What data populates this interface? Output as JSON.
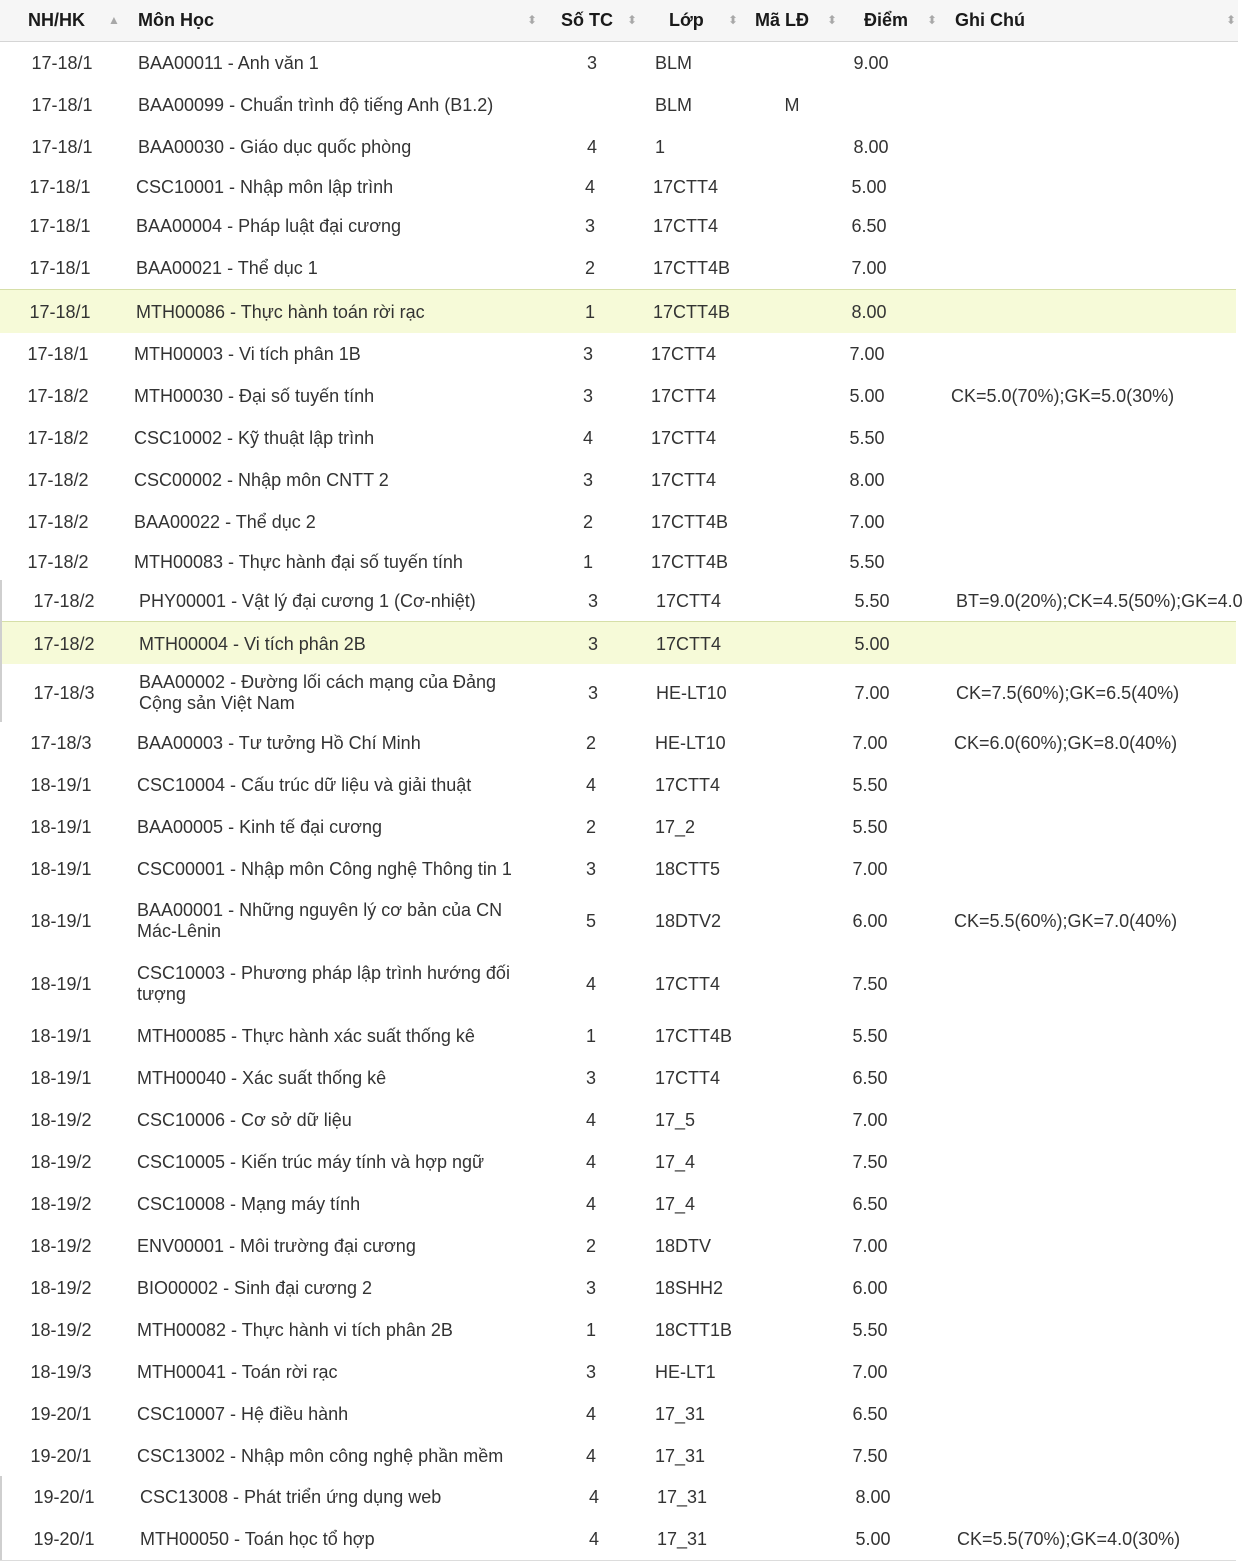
{
  "header": {
    "term": "NH/HK",
    "course": "Môn Học",
    "credits": "Số TC",
    "class": "Lớp",
    "lecturer_code": "Mã LĐ",
    "grade": "Điểm",
    "note": "Ghi Chú"
  },
  "rows": [
    {
      "term": "17-18/1",
      "course": "BAA00011 - Anh văn 1",
      "credits": "3",
      "class": "BLM",
      "lecturer": "",
      "grade": "9.00",
      "note": ""
    },
    {
      "term": "17-18/1",
      "course": "BAA00099 - Chuẩn trình độ tiếng Anh (B1.2)",
      "credits": "",
      "class": "BLM",
      "lecturer": "M",
      "grade": "",
      "note": ""
    },
    {
      "term": "17-18/1",
      "course": "BAA00030 - Giáo dục quốc phòng",
      "credits": "4",
      "class": "1",
      "lecturer": "",
      "grade": "8.00",
      "note": ""
    },
    {
      "term": "17-18/1",
      "course": "CSC10001 - Nhập môn lập trình",
      "credits": "4",
      "class": "17CTT4",
      "lecturer": "",
      "grade": "5.00",
      "note": ""
    },
    {
      "term": "17-18/1",
      "course": "BAA00004 - Pháp luật đại cương",
      "credits": "3",
      "class": "17CTT4",
      "lecturer": "",
      "grade": "6.50",
      "note": ""
    },
    {
      "term": "17-18/1",
      "course": "BAA00021 - Thể dục 1",
      "credits": "2",
      "class": "17CTT4B",
      "lecturer": "",
      "grade": "7.00",
      "note": ""
    },
    {
      "term": "17-18/1",
      "course": "MTH00086 - Thực hành toán rời rạc",
      "credits": "1",
      "class": "17CTT4B",
      "lecturer": "",
      "grade": "8.00",
      "note": ""
    },
    {
      "term": "17-18/1",
      "course": "MTH00003 - Vi tích phân 1B",
      "credits": "3",
      "class": "17CTT4",
      "lecturer": "",
      "grade": "7.00",
      "note": ""
    },
    {
      "term": "17-18/2",
      "course": "MTH00030 - Đại số tuyến tính",
      "credits": "3",
      "class": "17CTT4",
      "lecturer": "",
      "grade": "5.00",
      "note": "CK=5.0(70%);GK=5.0(30%)"
    },
    {
      "term": "17-18/2",
      "course": "CSC10002 - Kỹ thuật lập trình",
      "credits": "4",
      "class": "17CTT4",
      "lecturer": "",
      "grade": "5.50",
      "note": ""
    },
    {
      "term": "17-18/2",
      "course": "CSC00002 - Nhập môn CNTT 2",
      "credits": "3",
      "class": "17CTT4",
      "lecturer": "",
      "grade": "8.00",
      "note": ""
    },
    {
      "term": "17-18/2",
      "course": "BAA00022 - Thể dục 2",
      "credits": "2",
      "class": "17CTT4B",
      "lecturer": "",
      "grade": "7.00",
      "note": ""
    },
    {
      "term": "17-18/2",
      "course": "MTH00083 - Thực hành đại số tuyến tính",
      "credits": "1",
      "class": "17CTT4B",
      "lecturer": "",
      "grade": "5.50",
      "note": ""
    },
    {
      "term": "17-18/2",
      "course": "PHY00001 - Vật lý đại cương 1 (Cơ-nhiệt)",
      "credits": "3",
      "class": "17CTT4",
      "lecturer": "",
      "grade": "5.50",
      "note": "BT=9.0(20%);CK=4.5(50%);GK=4.0"
    },
    {
      "term": "17-18/2",
      "course": "MTH00004 - Vi tích phân 2B",
      "credits": "3",
      "class": "17CTT4",
      "lecturer": "",
      "grade": "5.00",
      "note": ""
    },
    {
      "term": "17-18/3",
      "course": "BAA00002 - Đường lối cách mạng của Đảng",
      "course2": "Cộng sản Việt Nam",
      "credits": "3",
      "class": "HE-LT10",
      "lecturer": "",
      "grade": "7.00",
      "note": "CK=7.5(60%);GK=6.5(40%)"
    },
    {
      "term": "17-18/3",
      "course": "BAA00003 - Tư tưởng Hồ Chí Minh",
      "credits": "2",
      "class": "HE-LT10",
      "lecturer": "",
      "grade": "7.00",
      "note": "CK=6.0(60%);GK=8.0(40%)"
    },
    {
      "term": "18-19/1",
      "course": "CSC10004 - Cấu trúc dữ liệu và giải thuật",
      "credits": "4",
      "class": "17CTT4",
      "lecturer": "",
      "grade": "5.50",
      "note": ""
    },
    {
      "term": "18-19/1",
      "course": "BAA00005 - Kinh tế đại cương",
      "credits": "2",
      "class": "17_2",
      "lecturer": "",
      "grade": "5.50",
      "note": ""
    },
    {
      "term": "18-19/1",
      "course": "CSC00001 - Nhập môn Công nghệ Thông tin 1",
      "credits": "3",
      "class": "18CTT5",
      "lecturer": "",
      "grade": "7.00",
      "note": ""
    },
    {
      "term": "18-19/1",
      "course": "BAA00001 - Những nguyên lý cơ bản của CN",
      "course2": "Mác-Lênin",
      "credits": "5",
      "class": "18DTV2",
      "lecturer": "",
      "grade": "6.00",
      "note": "CK=5.5(60%);GK=7.0(40%)"
    },
    {
      "term": "18-19/1",
      "course": "CSC10003 - Phương pháp lập trình hướng đối",
      "course2": "tượng",
      "credits": "4",
      "class": "17CTT4",
      "lecturer": "",
      "grade": "7.50",
      "note": ""
    },
    {
      "term": "18-19/1",
      "course": "MTH00085 - Thực hành xác suất thống kê",
      "credits": "1",
      "class": "17CTT4B",
      "lecturer": "",
      "grade": "5.50",
      "note": ""
    },
    {
      "term": "18-19/1",
      "course": "MTH00040 - Xác suất thống kê",
      "credits": "3",
      "class": "17CTT4",
      "lecturer": "",
      "grade": "6.50",
      "note": ""
    },
    {
      "term": "18-19/2",
      "course": "CSC10006 - Cơ sở dữ liệu",
      "credits": "4",
      "class": "17_5",
      "lecturer": "",
      "grade": "7.00",
      "note": ""
    },
    {
      "term": "18-19/2",
      "course": "CSC10005 - Kiến trúc máy tính và hợp ngữ",
      "credits": "4",
      "class": "17_4",
      "lecturer": "",
      "grade": "7.50",
      "note": ""
    },
    {
      "term": "18-19/2",
      "course": "CSC10008 - Mạng máy tính",
      "credits": "4",
      "class": "17_4",
      "lecturer": "",
      "grade": "6.50",
      "note": ""
    },
    {
      "term": "18-19/2",
      "course": "ENV00001 - Môi trường đại cương",
      "credits": "2",
      "class": "18DTV",
      "lecturer": "",
      "grade": "7.00",
      "note": ""
    },
    {
      "term": "18-19/2",
      "course": "BIO00002 - Sinh đại cương 2",
      "credits": "3",
      "class": "18SHH2",
      "lecturer": "",
      "grade": "6.00",
      "note": ""
    },
    {
      "term": "18-19/2",
      "course": "MTH00082 - Thực hành vi tích phân 2B",
      "credits": "1",
      "class": "18CTT1B",
      "lecturer": "",
      "grade": "5.50",
      "note": ""
    },
    {
      "term": "18-19/3",
      "course": "MTH00041 - Toán rời rạc",
      "credits": "3",
      "class": "HE-LT1",
      "lecturer": "",
      "grade": "7.00",
      "note": ""
    },
    {
      "term": "19-20/1",
      "course": "CSC10007 - Hệ điều hành",
      "credits": "4",
      "class": "17_31",
      "lecturer": "",
      "grade": "6.50",
      "note": ""
    },
    {
      "term": "19-20/1",
      "course": "CSC13002 - Nhập môn công nghệ phần mềm",
      "credits": "4",
      "class": "17_31",
      "lecturer": "",
      "grade": "7.50",
      "note": ""
    },
    {
      "term": "19-20/1",
      "course": "CSC13008 - Phát triển ứng dụng web",
      "credits": "4",
      "class": "17_31",
      "lecturer": "",
      "grade": "8.00",
      "note": ""
    },
    {
      "term": "19-20/1",
      "course": "MTH00050 - Toán học tổ hợp",
      "credits": "4",
      "class": "17_31",
      "lecturer": "",
      "grade": "5.00",
      "note": "CK=5.5(70%);GK=4.0(30%)"
    }
  ]
}
